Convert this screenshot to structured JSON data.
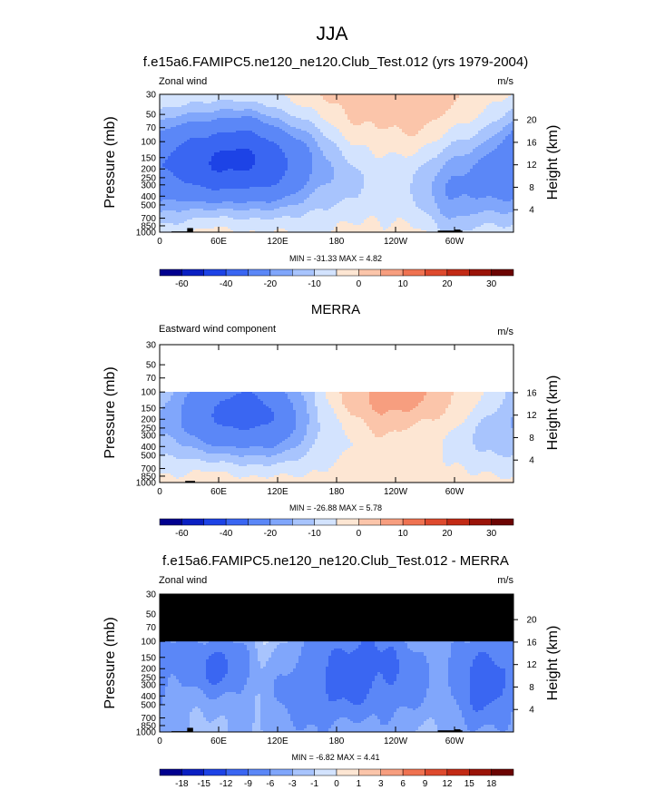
{
  "figure": {
    "title": "JJA"
  },
  "colors": {
    "neg": [
      "#01008e",
      "#0a1fc2",
      "#1d43e6",
      "#3a66f2",
      "#5b87f7",
      "#80a6fb",
      "#a8c4fd",
      "#d3e3fe"
    ],
    "pos": [
      "#fde6d3",
      "#fbc5aa",
      "#f79e7f",
      "#ef7251",
      "#de4a2e",
      "#c22a15",
      "#9a1308",
      "#6c0403"
    ],
    "mask": "#000000",
    "topo": "#000000"
  },
  "chart_data": [
    {
      "type": "heatmap",
      "name": "model",
      "title": "f.e15a6.FAMIPC5.ne120_ne120.Club_Test.012 (yrs 1979-2004)",
      "left_label": "Zonal wind",
      "units_label": "m/s",
      "ylabel": "Pressure (mb)",
      "ylabel_right": "Height (km)",
      "x_ticks": [
        "0",
        "60E",
        "120E",
        "180",
        "120W",
        "60W"
      ],
      "x_tick_values": [
        0,
        60,
        120,
        180,
        240,
        300
      ],
      "xlim": [
        0,
        360
      ],
      "y_ticks": [
        "30",
        "50",
        "70",
        "100",
        "150",
        "200",
        "250",
        "300",
        "400",
        "500",
        "700",
        "850",
        "1000"
      ],
      "y_tick_values": [
        30,
        50,
        70,
        100,
        150,
        200,
        250,
        300,
        400,
        500,
        700,
        850,
        1000
      ],
      "ylim": [
        1000,
        30
      ],
      "height_ticks": [
        "4",
        "8",
        "12",
        "16",
        "20"
      ],
      "height_tick_values": [
        4,
        8,
        12,
        16,
        20
      ],
      "data_ptop": 30,
      "masked_above": null,
      "min_label": "MIN = -31.33  MAX =  4.82",
      "colorbar_labels": [
        "-60",
        "-40",
        "-20",
        "-10",
        "0",
        "10",
        "20",
        "30"
      ],
      "colorbar_label_positions": [
        1,
        3,
        5,
        7,
        9,
        11,
        13,
        15
      ],
      "blobs": [
        {
          "lon": 80,
          "p": 160,
          "wlon": 55,
          "wz": 0.9,
          "amp": -32
        },
        {
          "lon": 40,
          "p": 220,
          "wlon": 100,
          "wz": 1.4,
          "amp": -10
        },
        {
          "lon": 120,
          "p": 170,
          "wlon": 70,
          "wz": 1.2,
          "amp": -6
        },
        {
          "lon": 250,
          "p": 220,
          "wlon": 60,
          "wz": 1.2,
          "amp": -7
        },
        {
          "lon": 345,
          "p": 230,
          "wlon": 40,
          "wz": 1.2,
          "amp": -14
        },
        {
          "lon": 295,
          "p": 380,
          "wlon": 18,
          "wz": 0.8,
          "amp": -9
        },
        {
          "lon": 60,
          "p": 650,
          "wlon": 55,
          "wz": 0.9,
          "amp": 8
        },
        {
          "lon": 170,
          "p": 55,
          "wlon": 150,
          "wz": 1.0,
          "amp": 5
        },
        {
          "lon": 260,
          "p": 70,
          "wlon": 80,
          "wz": 1.0,
          "amp": 4
        },
        {
          "lon": 320,
          "p": 160,
          "wlon": 40,
          "wz": 1.1,
          "amp": 4
        },
        {
          "lon": 300,
          "p": 930,
          "wlon": 80,
          "wz": 0.6,
          "amp": 2
        }
      ],
      "topo_bars": [
        [
          12,
          32,
          980
        ],
        [
          28,
          34,
          900
        ],
        [
          283,
          308,
          960
        ],
        [
          300,
          306,
          935
        ]
      ]
    },
    {
      "type": "heatmap",
      "name": "obs",
      "title": "MERRA",
      "left_label": "Eastward wind component",
      "units_label": "m/s",
      "ylabel": "Pressure (mb)",
      "ylabel_right": "Height (km)",
      "x_ticks": [
        "0",
        "60E",
        "120E",
        "180",
        "120W",
        "60W"
      ],
      "x_tick_values": [
        0,
        60,
        120,
        180,
        240,
        300
      ],
      "xlim": [
        0,
        360
      ],
      "y_ticks": [
        "30",
        "50",
        "70",
        "100",
        "150",
        "200",
        "250",
        "300",
        "400",
        "500",
        "700",
        "850",
        "1000"
      ],
      "y_tick_values": [
        30,
        50,
        70,
        100,
        150,
        200,
        250,
        300,
        400,
        500,
        700,
        850,
        1000
      ],
      "ylim": [
        1000,
        30
      ],
      "height_ticks": [
        "4",
        "8",
        "12",
        "16"
      ],
      "height_tick_values": [
        4,
        8,
        12,
        16
      ],
      "data_ptop": 100,
      "masked_above": null,
      "min_label": "MIN = -26.88  MAX =  5.78",
      "colorbar_labels": [
        "-60",
        "-40",
        "-20",
        "-10",
        "0",
        "10",
        "20",
        "30"
      ],
      "colorbar_label_positions": [
        1,
        3,
        5,
        7,
        9,
        11,
        13,
        15
      ],
      "blobs": [
        {
          "lon": 85,
          "p": 170,
          "wlon": 50,
          "wz": 0.9,
          "amp": -27
        },
        {
          "lon": 45,
          "p": 230,
          "wlon": 90,
          "wz": 1.3,
          "amp": -9
        },
        {
          "lon": 130,
          "p": 190,
          "wlon": 60,
          "wz": 1.2,
          "amp": -5
        },
        {
          "lon": 240,
          "p": 280,
          "wlon": 90,
          "wz": 1.8,
          "amp": -6
        },
        {
          "lon": 345,
          "p": 250,
          "wlon": 40,
          "wz": 1.3,
          "amp": -5
        },
        {
          "lon": 215,
          "p": 115,
          "wlon": 70,
          "wz": 0.7,
          "amp": 10
        },
        {
          "lon": 300,
          "p": 110,
          "wlon": 90,
          "wz": 0.6,
          "amp": 6
        },
        {
          "lon": 60,
          "p": 700,
          "wlon": 60,
          "wz": 1.0,
          "amp": 8
        },
        {
          "lon": 200,
          "p": 600,
          "wlon": 80,
          "wz": 1.0,
          "amp": 4
        },
        {
          "lon": 300,
          "p": 900,
          "wlon": 60,
          "wz": 0.6,
          "amp": 2
        }
      ],
      "topo_bars": [
        [
          12,
          30,
          990
        ],
        [
          26,
          36,
          960
        ]
      ]
    },
    {
      "type": "heatmap",
      "name": "diff",
      "title": "f.e15a6.FAMIPC5.ne120_ne120.Club_Test.012 - MERRA",
      "left_label": "Zonal wind",
      "units_label": "m/s",
      "ylabel": "Pressure (mb)",
      "ylabel_right": "Height (km)",
      "x_ticks": [
        "0",
        "60E",
        "120E",
        "180",
        "120W",
        "60W"
      ],
      "x_tick_values": [
        0,
        60,
        120,
        180,
        240,
        300
      ],
      "xlim": [
        0,
        360
      ],
      "y_ticks": [
        "30",
        "50",
        "70",
        "100",
        "150",
        "200",
        "250",
        "300",
        "400",
        "500",
        "700",
        "850",
        "1000"
      ],
      "y_tick_values": [
        30,
        50,
        70,
        100,
        150,
        200,
        250,
        300,
        400,
        500,
        700,
        850,
        1000
      ],
      "ylim": [
        1000,
        30
      ],
      "height_ticks": [
        "4",
        "8",
        "12",
        "16",
        "20"
      ],
      "height_tick_values": [
        4,
        8,
        12,
        16,
        20
      ],
      "data_ptop": 30,
      "masked_above": 100,
      "min_label": "MIN = -6.82  MAX =  4.41",
      "colorbar_labels": [
        "-18",
        "-15",
        "-12",
        "-9",
        "-6",
        "-3",
        "-1",
        "0",
        "1",
        "3",
        "6",
        "9",
        "12",
        "15",
        "18"
      ],
      "colorbar_label_positions": [
        1,
        2,
        3,
        4,
        5,
        6,
        7,
        8,
        9,
        10,
        11,
        12,
        13,
        14,
        15
      ],
      "blobs": [
        {
          "lon": 20,
          "p": 250,
          "wlon": 50,
          "wz": 1.6,
          "amp": -4
        },
        {
          "lon": 65,
          "p": 180,
          "wlon": 30,
          "wz": 0.6,
          "amp": -6
        },
        {
          "lon": 105,
          "p": 220,
          "wlon": 12,
          "wz": 1.8,
          "amp": 3
        },
        {
          "lon": 190,
          "p": 180,
          "wlon": 40,
          "wz": 1.2,
          "amp": -5
        },
        {
          "lon": 250,
          "p": 240,
          "wlon": 60,
          "wz": 1.2,
          "amp": -6
        },
        {
          "lon": 330,
          "p": 200,
          "wlon": 25,
          "wz": 1.0,
          "amp": -4
        },
        {
          "lon": 285,
          "p": 380,
          "wlon": 20,
          "wz": 1.6,
          "amp": 3
        },
        {
          "lon": 120,
          "p": 640,
          "wlon": 50,
          "wz": 0.8,
          "amp": -4
        },
        {
          "lon": 40,
          "p": 560,
          "wlon": 35,
          "wz": 0.6,
          "amp": 3
        },
        {
          "lon": 210,
          "p": 750,
          "wlon": 60,
          "wz": 0.8,
          "amp": 2
        },
        {
          "lon": 320,
          "p": 650,
          "wlon": 45,
          "wz": 0.9,
          "amp": -3
        },
        {
          "lon": 175,
          "p": 420,
          "wlon": 80,
          "wz": 1.5,
          "amp": -2
        }
      ],
      "topo_bars": [
        [
          12,
          32,
          980
        ],
        [
          28,
          34,
          900
        ],
        [
          283,
          308,
          960
        ],
        [
          300,
          306,
          935
        ]
      ]
    }
  ]
}
